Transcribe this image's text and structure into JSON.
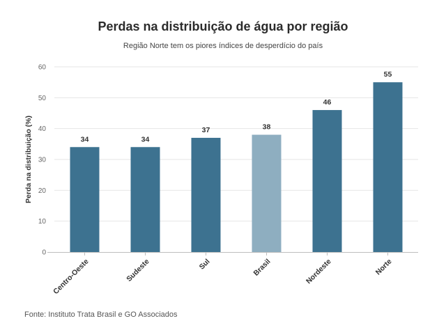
{
  "chart_data": {
    "type": "bar",
    "title": "Perdas na distribuição de água por região",
    "subtitle": "Região Norte tem os piores índices de desperdício do país",
    "ylabel": "Perda na distribuição (%)",
    "xlabel": "",
    "ylim": [
      0,
      60
    ],
    "yticks": [
      0,
      10,
      20,
      30,
      40,
      50,
      60
    ],
    "grid": true,
    "categories": [
      "Centro-Oeste",
      "Sudeste",
      "Sul",
      "Brasil",
      "Nordeste",
      "Norte"
    ],
    "values": [
      34,
      34,
      37,
      38,
      46,
      55
    ],
    "colors": [
      "#3d7290",
      "#3d7290",
      "#3d7290",
      "#8eaec0",
      "#3d7290",
      "#3d7290"
    ],
    "source": "Fonte: Instituto Trata Brasil e GO Associados"
  }
}
